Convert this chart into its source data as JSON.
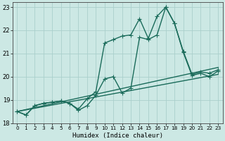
{
  "xlabel": "Humidex (Indice chaleur)",
  "bg_color": "#cce8e4",
  "grid_color": "#aacfcc",
  "line_color": "#1a6b5a",
  "xlim": [
    -0.5,
    23.5
  ],
  "ylim": [
    18,
    23.2
  ],
  "yticks": [
    18,
    19,
    20,
    21,
    22,
    23
  ],
  "xticks": [
    0,
    1,
    2,
    3,
    4,
    5,
    6,
    7,
    8,
    9,
    10,
    11,
    12,
    13,
    14,
    15,
    16,
    17,
    18,
    19,
    20,
    21,
    22,
    23
  ],
  "series": [
    {
      "x": [
        0,
        1,
        2,
        3,
        4,
        5,
        6,
        7,
        8,
        9,
        10,
        11,
        12,
        13,
        14,
        15,
        16,
        17,
        18,
        19,
        20,
        21,
        22,
        23
      ],
      "y": [
        18.5,
        18.35,
        18.75,
        18.85,
        18.9,
        18.95,
        18.85,
        18.6,
        19.05,
        19.35,
        21.45,
        21.6,
        21.75,
        21.8,
        22.5,
        21.65,
        22.6,
        23.0,
        22.3,
        21.05,
        20.05,
        20.15,
        20.0,
        20.25
      ],
      "marker": "+",
      "markersize": 4,
      "linewidth": 1.0
    },
    {
      "x": [
        0,
        1,
        2,
        3,
        4,
        5,
        6,
        7,
        8,
        9,
        10,
        11,
        12,
        13,
        14,
        15,
        16,
        17,
        18,
        19,
        20,
        21,
        22,
        23
      ],
      "y": [
        18.5,
        18.35,
        18.75,
        18.85,
        18.9,
        18.95,
        18.85,
        18.55,
        18.75,
        19.2,
        19.9,
        20.0,
        19.3,
        19.5,
        21.7,
        21.6,
        21.8,
        23.0,
        22.3,
        21.1,
        20.1,
        20.2,
        20.15,
        20.3
      ],
      "marker": "+",
      "markersize": 4,
      "linewidth": 1.0
    },
    {
      "x": [
        0,
        23
      ],
      "y": [
        18.5,
        20.4
      ],
      "marker": null,
      "markersize": 0,
      "linewidth": 1.0
    },
    {
      "x": [
        0,
        23
      ],
      "y": [
        18.5,
        20.1
      ],
      "marker": null,
      "markersize": 0,
      "linewidth": 1.0
    }
  ]
}
